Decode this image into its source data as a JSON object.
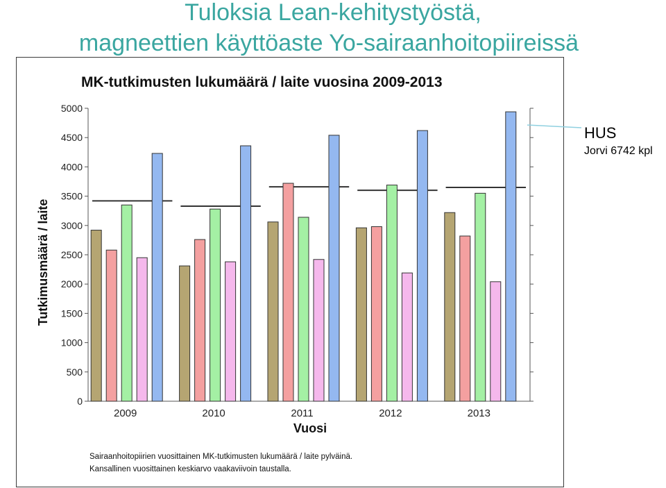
{
  "slide": {
    "title_line1": "Tuloksia Lean-kehitystyöstä,",
    "title_line2": "magneettien käyttöaste Yo-sairaanhoitopiireissä"
  },
  "annotation": {
    "label": "HUS",
    "sublabel": "Jorvi 6742 kpl",
    "line_color": "#8fd0e0"
  },
  "chart_data": {
    "type": "bar",
    "title": "MK-tutkimusten lukumäärä / laite vuosina 2009-2013",
    "xlabel": "Vuosi",
    "ylabel": "Tutkimusmäärä / laite",
    "ylim": [
      0,
      5000
    ],
    "yticks": [
      0,
      500,
      1000,
      1500,
      2000,
      2500,
      3000,
      3500,
      4000,
      4500,
      5000
    ],
    "grid": false,
    "categories": [
      "2009",
      "2010",
      "2011",
      "2012",
      "2013"
    ],
    "series": [
      {
        "color": "#b5a572",
        "values": [
          2920,
          2310,
          3060,
          2960,
          3220
        ]
      },
      {
        "color": "#f4a0a0",
        "values": [
          2580,
          2760,
          3720,
          2980,
          2820
        ]
      },
      {
        "color": "#a4f0a4",
        "values": [
          3350,
          3280,
          3140,
          3690,
          3550
        ]
      },
      {
        "color": "#f5b8ec",
        "values": [
          2450,
          2380,
          2420,
          2190,
          2040
        ]
      },
      {
        "color": "#94b8f0",
        "values": [
          4230,
          4360,
          4540,
          4620,
          4940
        ]
      }
    ],
    "national_average": [
      3420,
      3330,
      3660,
      3600,
      3650
    ],
    "footnote_line1": "Sairaanhoitopiirien vuosittainen MK-tutkimusten lukumäärä / laite pylväinä.",
    "footnote_line2": "Kansallinen vuosittainen keskiarvo vaakaviivoin taustalla."
  }
}
